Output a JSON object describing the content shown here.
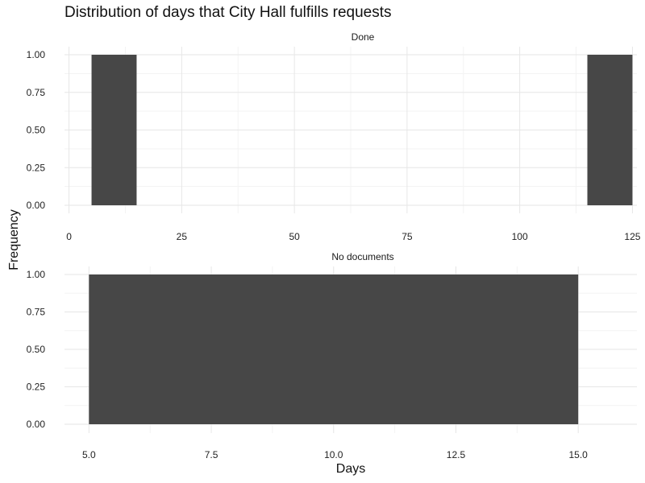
{
  "chart_data": {
    "type": "bar",
    "title": "Distribution of days that City Hall fulfills requests",
    "xlabel": "Days",
    "ylabel": "Frequency",
    "bar_color": "#474747",
    "grid": true,
    "facets": [
      {
        "label": "Done",
        "xlim": [
          -1,
          126
        ],
        "ylim": [
          0,
          1
        ],
        "x_ticks": [
          0,
          25,
          50,
          75,
          100,
          125
        ],
        "x_tick_labels": [
          "0",
          "25",
          "50",
          "75",
          "100",
          "125"
        ],
        "y_ticks": [
          0,
          0.25,
          0.5,
          0.75,
          1
        ],
        "y_tick_labels": [
          "0.00",
          "0.25",
          "0.50",
          "0.75",
          "1.00"
        ],
        "bars": [
          {
            "x_start": 5,
            "x_end": 15,
            "value": 1
          },
          {
            "x_start": 115,
            "x_end": 125,
            "value": 1
          }
        ]
      },
      {
        "label": "No documents",
        "xlim": [
          4.5,
          16.2
        ],
        "ylim": [
          0,
          1
        ],
        "x_ticks": [
          5,
          7.5,
          10,
          12.5,
          15
        ],
        "x_tick_labels": [
          "5.0",
          "7.5",
          "10.0",
          "12.5",
          "15.0"
        ],
        "y_ticks": [
          0,
          0.25,
          0.5,
          0.75,
          1
        ],
        "y_tick_labels": [
          "0.00",
          "0.25",
          "0.50",
          "0.75",
          "1.00"
        ],
        "bars": [
          {
            "x_start": 5,
            "x_end": 15,
            "value": 1
          }
        ]
      }
    ]
  }
}
